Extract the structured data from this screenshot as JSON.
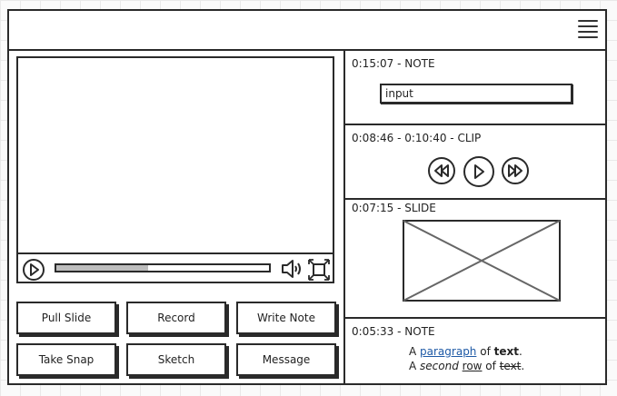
{
  "app": {
    "menu_icon": "hamburger-icon"
  },
  "player": {
    "progress_fraction": 0.43,
    "play_icon": "play-icon",
    "volume_icon": "volume-icon",
    "fullscreen_icon": "fullscreen-icon"
  },
  "actions": [
    {
      "label": "Pull Slide"
    },
    {
      "label": "Record"
    },
    {
      "label": "Write Note"
    },
    {
      "label": "Take Snap"
    },
    {
      "label": "Sketch"
    },
    {
      "label": "Message"
    }
  ],
  "timeline": {
    "note1": {
      "title": "0:15:07 - NOTE",
      "input_value": "input"
    },
    "clip": {
      "title": "0:08:46 - 0:10:40 - CLIP",
      "icons": [
        "rewind-icon",
        "play-icon",
        "fast-forward-icon"
      ]
    },
    "slide": {
      "title": "0:07:15 - SLIDE",
      "image_icon": "image-placeholder-icon"
    },
    "note2": {
      "title": "0:05:33 - NOTE",
      "line1": {
        "a": "A ",
        "link": "paragraph",
        "of": " of ",
        "bold": "text",
        "end": "."
      },
      "line2": {
        "a": "A ",
        "italic": "second",
        "sp": " ",
        "under": "row",
        "of": " of ",
        "strike": "text",
        "end": "."
      }
    }
  }
}
